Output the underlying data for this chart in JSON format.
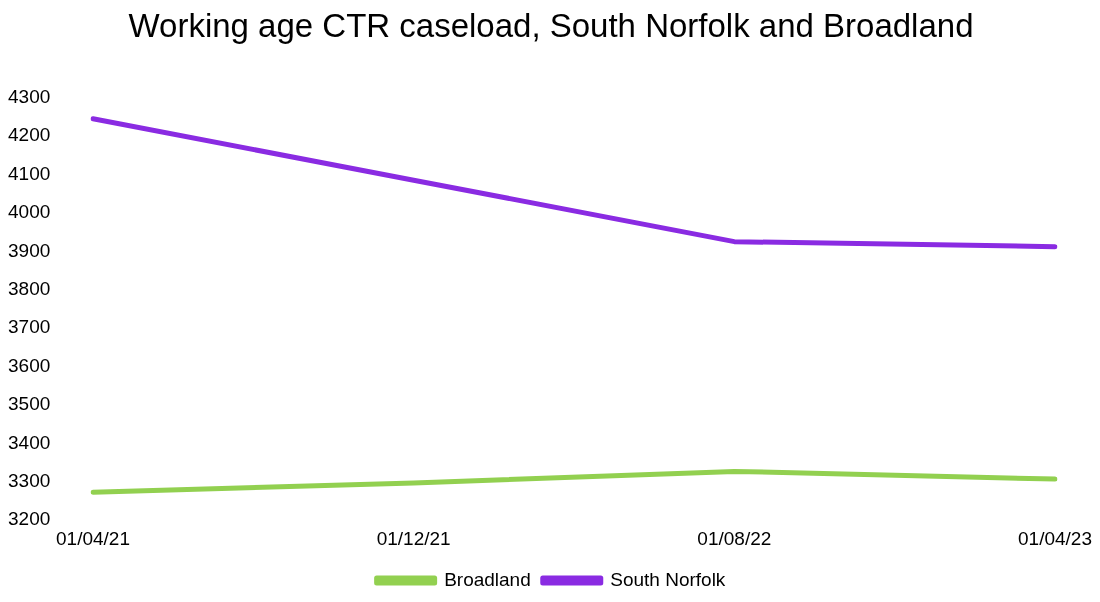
{
  "chart_data": {
    "type": "line",
    "title": "Working age CTR caseload, South Norfolk and Broadland",
    "categories": [
      "01/04/21",
      "01/12/21",
      "01/08/22",
      "01/04/23"
    ],
    "series": [
      {
        "name": "Broadland",
        "color": "#92d050",
        "values": [
          3273,
          3297,
          3327,
          3307
        ]
      },
      {
        "name": "South Norfolk",
        "color": "#8a2be2",
        "values": [
          4245,
          4085,
          3925,
          3912
        ]
      }
    ],
    "ylim": [
      3200,
      4300
    ],
    "yticks": [
      3200,
      3300,
      3400,
      3500,
      3600,
      3700,
      3800,
      3900,
      4000,
      4100,
      4200,
      4300
    ],
    "grid": false,
    "legend": "bottom",
    "marker": "none",
    "line_style": "solid"
  }
}
